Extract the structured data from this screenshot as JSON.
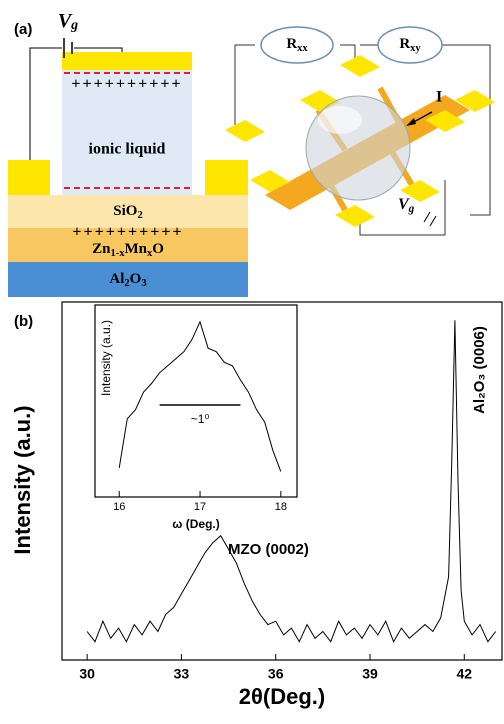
{
  "diagram": {
    "panel_label": "(a)",
    "gate_voltage": [
      "V",
      "g"
    ],
    "charges_top": "++++++++++",
    "ionic_liquid": "ionic liquid",
    "layer_sio2": [
      "SiO",
      "2"
    ],
    "charges_bottom": "++++++++++",
    "layer_zmo": [
      "Zn",
      "1-x",
      "Mn",
      "x",
      "O"
    ],
    "layer_substrate": [
      "Al",
      "2",
      "O",
      "3"
    ],
    "r_xx": [
      "R",
      "xx"
    ],
    "r_xy": [
      "R",
      "xy"
    ],
    "current": "I",
    "gate_voltage_right": [
      "V",
      "g"
    ]
  },
  "chart_data": [
    {
      "type": "line",
      "panel_label": "(b)",
      "x_label": "2θ(Deg.)",
      "y_label": "Intensity (a.u.)",
      "color": "#000000",
      "x": [
        30,
        30.25,
        30.5,
        30.75,
        31,
        31.25,
        31.5,
        31.75,
        32,
        32.25,
        32.5,
        32.75,
        33,
        33.25,
        33.5,
        33.75,
        34,
        34.25,
        34.5,
        34.75,
        35,
        35.25,
        35.5,
        35.75,
        36,
        36.25,
        36.5,
        36.75,
        37,
        37.25,
        37.5,
        37.75,
        38,
        38.25,
        38.5,
        38.75,
        39,
        39.25,
        39.5,
        39.75,
        40,
        40.25,
        40.5,
        40.75,
        41,
        41.25,
        41.5,
        41.6,
        41.7,
        41.8,
        41.9,
        42,
        42.25,
        42.5,
        42.75,
        43
      ],
      "values": [
        6,
        3,
        9,
        4,
        7,
        3,
        8,
        5,
        9,
        6,
        11,
        13,
        17,
        21,
        25,
        29,
        32,
        34,
        30,
        26,
        20,
        15,
        11,
        8,
        9,
        5,
        7,
        3,
        8,
        4,
        6,
        3,
        9,
        5,
        7,
        4,
        8,
        5,
        9,
        3,
        7,
        4,
        6,
        8,
        6,
        10,
        22,
        55,
        97,
        50,
        18,
        9,
        5,
        8,
        3,
        6
      ],
      "xlim": [
        29.2,
        43.2
      ],
      "xticks": [
        30,
        33,
        36,
        39,
        42
      ],
      "ylim": [
        0,
        100
      ],
      "annotations": [
        "MZO (0002)",
        "Al₂O₃ (0006)"
      ]
    },
    {
      "type": "line",
      "x_label": "ω (Deg.)",
      "y_label": "Intensity (a.u.)",
      "color": "#000000",
      "x": [
        16,
        16.1,
        16.2,
        16.3,
        16.4,
        16.5,
        16.6,
        16.7,
        16.8,
        16.9,
        17,
        17.1,
        17.2,
        17.3,
        17.4,
        17.5,
        17.6,
        17.7,
        17.8,
        17.9,
        18
      ],
      "values": [
        12,
        40,
        45,
        55,
        60,
        66,
        70,
        74,
        78,
        85,
        95,
        80,
        78,
        72,
        70,
        62,
        55,
        45,
        38,
        22,
        10
      ],
      "xlim": [
        15.7,
        18.2
      ],
      "xticks": [
        16,
        17,
        18
      ],
      "ylim": [
        0,
        100
      ],
      "annotations": [
        "~1⁰"
      ]
    }
  ]
}
